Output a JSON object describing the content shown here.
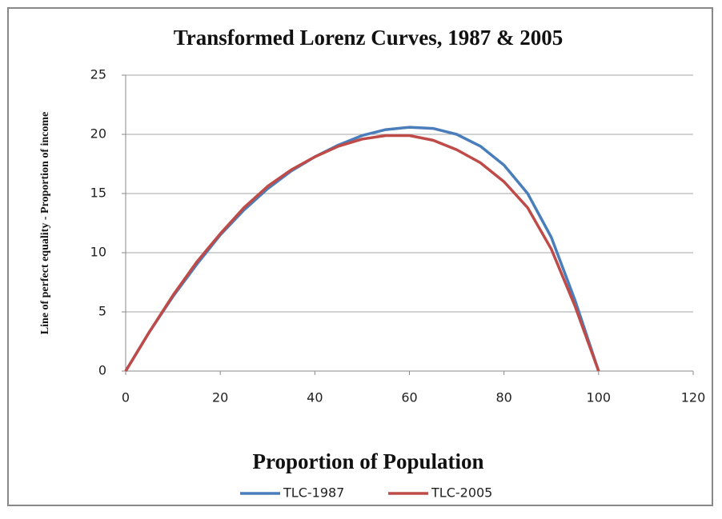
{
  "chart_data": {
    "type": "line",
    "title": "Transformed Lorenz Curves, 1987 & 2005",
    "x_label": "Proportion of Population",
    "y_label": "Line of perfect equality - Proportion of income",
    "x": [
      0,
      5,
      10,
      15,
      20,
      25,
      30,
      35,
      40,
      45,
      50,
      55,
      60,
      65,
      70,
      75,
      80,
      85,
      90,
      95,
      100
    ],
    "series": [
      {
        "name": "TLC-1987",
        "color": "#4a7ebb",
        "values": [
          0,
          3.3,
          6.3,
          9.0,
          11.5,
          13.6,
          15.4,
          16.9,
          18.1,
          19.1,
          19.9,
          20.4,
          20.6,
          20.5,
          20.0,
          19.0,
          17.4,
          15.0,
          11.3,
          6.0,
          0
        ]
      },
      {
        "name": "TLC-2005",
        "color": "#be4b48",
        "values": [
          0,
          3.3,
          6.4,
          9.2,
          11.6,
          13.8,
          15.6,
          17.0,
          18.1,
          19.0,
          19.6,
          19.9,
          19.9,
          19.5,
          18.7,
          17.6,
          16.0,
          13.8,
          10.3,
          5.5,
          0
        ]
      }
    ],
    "xlim": [
      0,
      120
    ],
    "xticks": [
      0,
      20,
      40,
      60,
      80,
      100,
      120
    ],
    "ylim": [
      0,
      25
    ],
    "yticks": [
      0,
      5,
      10,
      15,
      20,
      25
    ],
    "grid": true,
    "legend": "bottom"
  }
}
